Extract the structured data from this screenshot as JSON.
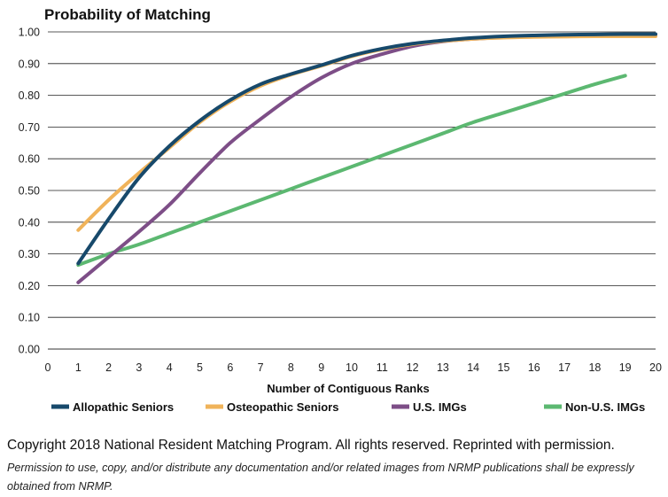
{
  "chart_data": {
    "type": "line",
    "title": "Probability of Matching",
    "xlabel": "Number of Contiguous Ranks",
    "ylabel": "",
    "xlim": [
      0,
      20
    ],
    "ylim": [
      0.0,
      1.0
    ],
    "x_ticks": [
      "0",
      "1",
      "2",
      "3",
      "4",
      "5",
      "6",
      "7",
      "8",
      "9",
      "10",
      "11",
      "12",
      "13",
      "14",
      "15",
      "16",
      "17",
      "18",
      "19",
      "20"
    ],
    "y_ticks": [
      "0.00",
      "0.10",
      "0.20",
      "0.30",
      "0.40",
      "0.50",
      "0.60",
      "0.70",
      "0.80",
      "0.90",
      "1.00"
    ],
    "grid": "horizontal",
    "legend_position": "bottom",
    "series": [
      {
        "name": "Allopathic Seniors",
        "color": "#17496b",
        "points": [
          [
            1,
            0.27
          ],
          [
            2,
            0.41
          ],
          [
            3,
            0.54
          ],
          [
            4,
            0.64
          ],
          [
            5,
            0.72
          ],
          [
            6,
            0.785
          ],
          [
            7,
            0.835
          ],
          [
            8,
            0.867
          ],
          [
            9,
            0.895
          ],
          [
            10,
            0.925
          ],
          [
            11,
            0.947
          ],
          [
            12,
            0.963
          ],
          [
            13,
            0.973
          ],
          [
            14,
            0.981
          ],
          [
            15,
            0.986
          ],
          [
            16,
            0.989
          ],
          [
            17,
            0.991
          ],
          [
            18,
            0.992
          ],
          [
            19,
            0.993
          ],
          [
            20,
            0.993
          ]
        ]
      },
      {
        "name": "Osteopathic Seniors",
        "color": "#f0b35a",
        "points": [
          [
            1,
            0.375
          ],
          [
            2,
            0.47
          ],
          [
            3,
            0.555
          ],
          [
            4,
            0.635
          ],
          [
            5,
            0.715
          ],
          [
            6,
            0.78
          ],
          [
            7,
            0.83
          ],
          [
            8,
            0.865
          ],
          [
            9,
            0.893
          ],
          [
            10,
            0.923
          ],
          [
            11,
            0.945
          ],
          [
            12,
            0.961
          ],
          [
            13,
            0.971
          ],
          [
            14,
            0.978
          ],
          [
            15,
            0.982
          ],
          [
            16,
            0.984
          ],
          [
            17,
            0.985
          ],
          [
            18,
            0.986
          ],
          [
            19,
            0.986
          ],
          [
            20,
            0.986
          ]
        ]
      },
      {
        "name": "U.S. IMGs",
        "color": "#7d4e87",
        "points": [
          [
            1,
            0.21
          ],
          [
            2,
            0.29
          ],
          [
            3,
            0.37
          ],
          [
            4,
            0.455
          ],
          [
            5,
            0.555
          ],
          [
            6,
            0.65
          ],
          [
            7,
            0.725
          ],
          [
            8,
            0.795
          ],
          [
            9,
            0.855
          ],
          [
            10,
            0.9
          ],
          [
            11,
            0.93
          ],
          [
            12,
            0.955
          ],
          [
            13,
            0.97
          ],
          [
            14,
            0.978
          ],
          [
            15,
            0.983
          ],
          [
            16,
            0.986
          ],
          [
            17,
            0.988
          ],
          [
            18,
            0.989
          ],
          [
            19,
            0.99
          ],
          [
            20,
            0.99
          ]
        ]
      },
      {
        "name": "Non-U.S. IMGs",
        "color": "#5cb871",
        "points": [
          [
            1,
            0.265
          ],
          [
            2,
            0.3
          ],
          [
            3,
            0.33
          ],
          [
            4,
            0.365
          ],
          [
            5,
            0.4
          ],
          [
            6,
            0.435
          ],
          [
            7,
            0.47
          ],
          [
            8,
            0.505
          ],
          [
            9,
            0.54
          ],
          [
            10,
            0.575
          ],
          [
            11,
            0.61
          ],
          [
            12,
            0.645
          ],
          [
            13,
            0.68
          ],
          [
            14,
            0.715
          ],
          [
            15,
            0.745
          ],
          [
            16,
            0.775
          ],
          [
            17,
            0.805
          ],
          [
            18,
            0.835
          ],
          [
            19,
            0.862
          ]
        ]
      }
    ]
  },
  "footer": {
    "copyright": "Copyright 2018 National Resident Matching Program. All rights reserved. Reprinted with permission.",
    "permission": "Permission to use, copy, and/or distribute any documentation and/or related images from NRMP publications shall be expressly obtained from NRMP."
  }
}
